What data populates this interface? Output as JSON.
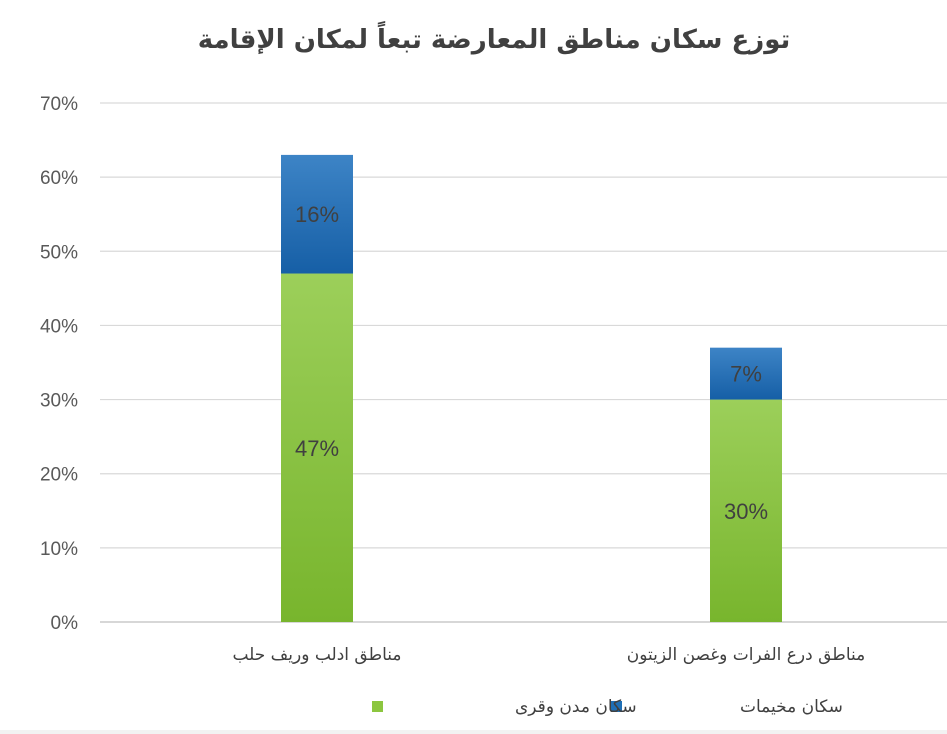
{
  "chart_data": {
    "type": "bar",
    "stacked": true,
    "title": "توزع سكان مناطق المعارضة تبعاً لمكان الإقامة",
    "categories": [
      "مناطق ادلب وريف حلب",
      "مناطق درع الفرات وغصن الزيتون"
    ],
    "series": [
      {
        "name": "سكان مدن وقرى",
        "values": [
          47,
          30
        ],
        "labels": [
          "47%",
          "30%"
        ],
        "color": "#8cc63f",
        "color_light": "#9ccf5a"
      },
      {
        "name": "سكان مخيمات",
        "values": [
          16,
          7
        ],
        "labels": [
          "16%",
          "7%"
        ],
        "color": "#1f6fb5",
        "color_light": "#3b82c4"
      }
    ],
    "ylim": [
      0,
      70
    ],
    "yticks": [
      0,
      10,
      20,
      30,
      40,
      50,
      60,
      70
    ],
    "ytick_labels": [
      "0%",
      "10%",
      "20%",
      "30%",
      "40%",
      "50%",
      "60%",
      "70%"
    ],
    "grid": true,
    "legend_position": "bottom"
  }
}
